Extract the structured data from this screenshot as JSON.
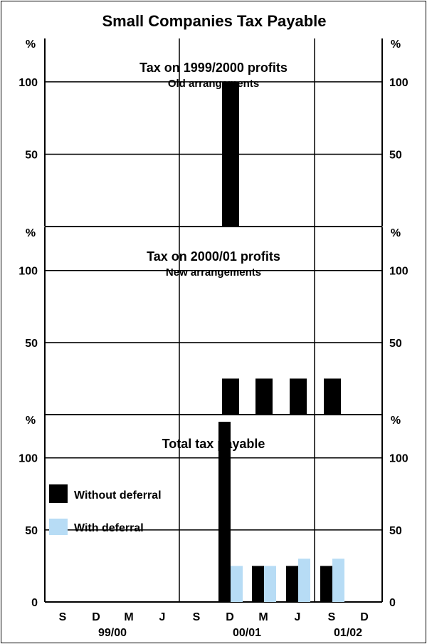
{
  "chart_data": {
    "title": "Small Companies Tax Payable",
    "unit_label": "%",
    "type": "bar",
    "categories": [
      "S",
      "D",
      "M",
      "J",
      "S",
      "D",
      "M",
      "J",
      "S",
      "D"
    ],
    "year_groups": [
      "99/00",
      "00/01",
      "01/02"
    ],
    "ylim": [
      0,
      130
    ],
    "yticks": [
      "50",
      "100"
    ],
    "bottom_yticks": [
      "0",
      "50",
      "100"
    ],
    "colors": {
      "without": "#000000",
      "with": "#b7dcf5"
    },
    "panels": [
      {
        "title": "Tax on 1999/2000 profits",
        "subtitle": "Old arrangements",
        "series": [
          {
            "name": "Without deferral",
            "values": [
              0,
              0,
              0,
              0,
              0,
              100,
              0,
              0,
              0,
              0
            ]
          }
        ]
      },
      {
        "title": "Tax on 2000/01 profits",
        "subtitle": "New arrangements",
        "series": [
          {
            "name": "Without deferral",
            "values": [
              0,
              0,
              0,
              0,
              0,
              25,
              25,
              25,
              25,
              0
            ]
          }
        ]
      },
      {
        "title": "Total tax payable",
        "subtitle": "",
        "series": [
          {
            "name": "Without deferral",
            "values": [
              0,
              0,
              0,
              0,
              0,
              125,
              25,
              25,
              25,
              0
            ]
          },
          {
            "name": "With deferral",
            "values": [
              0,
              0,
              0,
              0,
              0,
              25,
              25,
              30,
              30,
              0
            ]
          }
        ]
      }
    ],
    "legend": [
      {
        "label": "Without deferral"
      },
      {
        "label": "With deferral"
      }
    ]
  }
}
